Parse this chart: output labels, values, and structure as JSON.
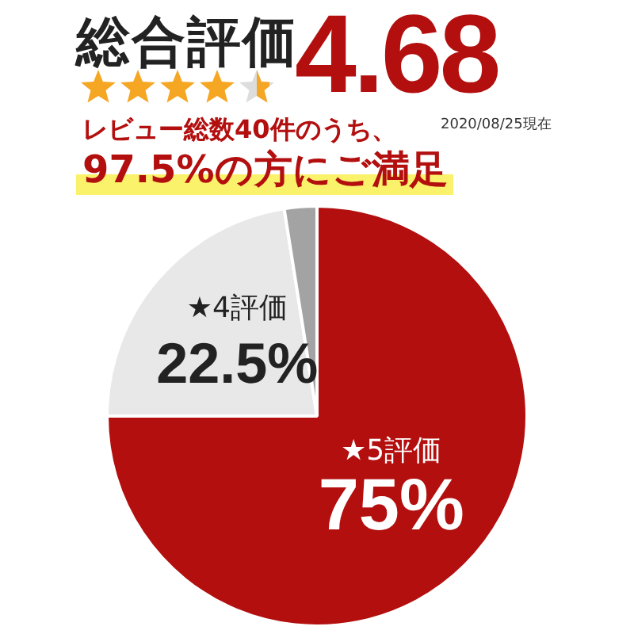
{
  "chart_data": {
    "type": "pie",
    "title": "総合評価",
    "annotations": [
      "4.68",
      "2020/08/25現在",
      "レビュー総数40件のうち、",
      "97.5%の方にご満足"
    ],
    "categories": [
      "★5評価",
      "★4評価",
      null
    ],
    "values": [
      75,
      22.5,
      2.5
    ],
    "value_labels": [
      "75%",
      "22.5%",
      null
    ],
    "colors": [
      "#b30f0f",
      "#e8e8e8",
      "#a3a3a3"
    ],
    "legend": false
  }
}
